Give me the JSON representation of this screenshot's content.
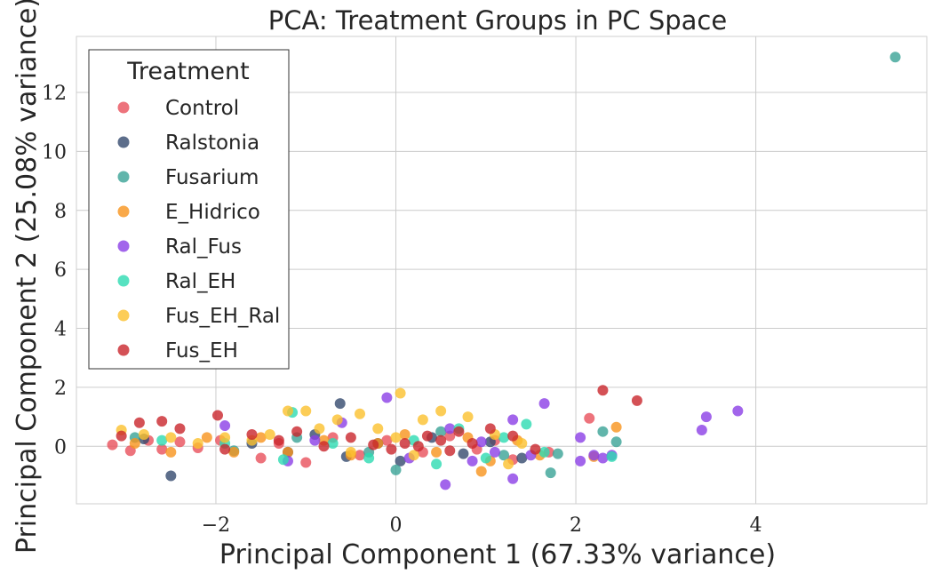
{
  "chart_data": {
    "type": "scatter",
    "title": "PCA: Treatment Groups in PC Space",
    "xlabel": "Principal Component 1 (67.33% variance)",
    "ylabel": "Principal Component 2 (25.08% variance)",
    "xlim": [
      -3.55,
      5.9
    ],
    "ylim": [
      -1.95,
      13.9
    ],
    "xticks": [
      -2,
      0,
      2,
      4
    ],
    "xtick_labels": [
      "−2",
      "0",
      "2",
      "4"
    ],
    "yticks": [
      0,
      2,
      4,
      6,
      8,
      10,
      12
    ],
    "ytick_labels": [
      "0",
      "2",
      "4",
      "6",
      "8",
      "10",
      "12"
    ],
    "grid": true,
    "legend": {
      "title": "Treatment",
      "placement": "upper-left"
    },
    "series": [
      {
        "name": "Control",
        "color": "#e8505b",
        "points": [
          [
            -3.15,
            0.05
          ],
          [
            -2.95,
            -0.15
          ],
          [
            -2.75,
            0.2
          ],
          [
            -2.6,
            -0.1
          ],
          [
            -2.4,
            0.15
          ],
          [
            -2.2,
            -0.05
          ],
          [
            -1.95,
            0.2
          ],
          [
            -1.5,
            -0.4
          ],
          [
            -1.3,
            0.1
          ],
          [
            -1.0,
            -0.55
          ],
          [
            -0.7,
            0.3
          ],
          [
            -0.4,
            -0.3
          ],
          [
            -0.1,
            0.2
          ],
          [
            0.3,
            -0.2
          ],
          [
            0.6,
            0.35
          ],
          [
            0.9,
            -0.1
          ],
          [
            1.3,
            -0.45
          ],
          [
            1.7,
            -0.2
          ],
          [
            2.15,
            0.95
          ],
          [
            1.1,
            0.2
          ]
        ]
      },
      {
        "name": "Ralstonia",
        "color": "#344a6e",
        "points": [
          [
            -2.5,
            -1.0
          ],
          [
            -0.62,
            1.45
          ],
          [
            -2.8,
            0.25
          ],
          [
            -1.6,
            0.1
          ],
          [
            -1.2,
            -0.2
          ],
          [
            -0.9,
            0.4
          ],
          [
            -0.55,
            -0.35
          ],
          [
            -0.2,
            0.1
          ],
          [
            0.05,
            -0.5
          ],
          [
            0.4,
            0.3
          ],
          [
            0.75,
            -0.25
          ],
          [
            1.05,
            0.15
          ],
          [
            1.4,
            -0.4
          ]
        ]
      },
      {
        "name": "Fusarium",
        "color": "#3aa396",
        "points": [
          [
            5.55,
            13.2
          ],
          [
            -2.9,
            0.3
          ],
          [
            -1.8,
            -0.15
          ],
          [
            -1.1,
            0.3
          ],
          [
            -0.3,
            -0.2
          ],
          [
            0.5,
            0.5
          ],
          [
            1.2,
            -0.3
          ],
          [
            1.8,
            -0.25
          ],
          [
            2.3,
            0.5
          ],
          [
            2.45,
            0.15
          ],
          [
            1.72,
            -0.9
          ],
          [
            0.0,
            -0.8
          ]
        ]
      },
      {
        "name": "E_Hidrico",
        "color": "#f7941d",
        "points": [
          [
            -2.9,
            0.1
          ],
          [
            -2.5,
            -0.2
          ],
          [
            -2.1,
            0.3
          ],
          [
            -1.8,
            -0.2
          ],
          [
            -1.5,
            0.3
          ],
          [
            -1.2,
            -0.2
          ],
          [
            -0.8,
            0.2
          ],
          [
            -0.5,
            -0.3
          ],
          [
            -0.2,
            0.1
          ],
          [
            0.1,
            0.4
          ],
          [
            0.45,
            -0.2
          ],
          [
            0.8,
            0.3
          ],
          [
            1.05,
            -0.5
          ],
          [
            1.35,
            0.2
          ],
          [
            1.6,
            -0.3
          ],
          [
            2.45,
            0.65
          ],
          [
            2.2,
            -0.35
          ],
          [
            0.95,
            -0.85
          ]
        ]
      },
      {
        "name": "Ral_Fus",
        "color": "#8b3fe6",
        "points": [
          [
            3.8,
            1.2
          ],
          [
            3.45,
            1.0
          ],
          [
            3.4,
            0.55
          ],
          [
            2.4,
            -0.3
          ],
          [
            2.3,
            -0.4
          ],
          [
            2.2,
            -0.3
          ],
          [
            2.05,
            -0.5
          ],
          [
            2.05,
            0.3
          ],
          [
            1.65,
            1.45
          ],
          [
            1.5,
            -0.3
          ],
          [
            1.3,
            0.9
          ],
          [
            1.1,
            -0.2
          ],
          [
            0.85,
            -0.5
          ],
          [
            0.6,
            0.6
          ],
          [
            0.55,
            -1.3
          ],
          [
            0.15,
            -0.4
          ],
          [
            -0.1,
            1.65
          ],
          [
            -0.6,
            0.8
          ],
          [
            -0.9,
            0.2
          ],
          [
            -1.2,
            -0.5
          ],
          [
            -1.9,
            0.7
          ],
          [
            1.3,
            -1.1
          ],
          [
            0.95,
            0.15
          ]
        ]
      },
      {
        "name": "Ral_EH",
        "color": "#2ddbb2",
        "points": [
          [
            -2.6,
            0.2
          ],
          [
            -1.9,
            0.1
          ],
          [
            -1.25,
            -0.45
          ],
          [
            -1.15,
            1.15
          ],
          [
            -0.7,
            0.1
          ],
          [
            -0.3,
            -0.4
          ],
          [
            0.2,
            0.2
          ],
          [
            0.45,
            -0.6
          ],
          [
            0.7,
            0.6
          ],
          [
            1.0,
            -0.4
          ],
          [
            1.2,
            0.3
          ],
          [
            1.45,
            0.75
          ],
          [
            1.65,
            -0.2
          ],
          [
            2.4,
            -0.35
          ]
        ]
      },
      {
        "name": "Fus_EH_Ral",
        "color": "#fbc02d",
        "points": [
          [
            -3.05,
            0.55
          ],
          [
            -2.8,
            0.4
          ],
          [
            -2.5,
            0.3
          ],
          [
            -2.2,
            0.1
          ],
          [
            -1.9,
            0.3
          ],
          [
            -1.6,
            0.2
          ],
          [
            -1.4,
            0.4
          ],
          [
            -1.2,
            1.2
          ],
          [
            -1.0,
            1.2
          ],
          [
            -0.85,
            0.6
          ],
          [
            -0.65,
            0.9
          ],
          [
            -0.4,
            1.1
          ],
          [
            -0.2,
            0.6
          ],
          [
            0.0,
            0.3
          ],
          [
            0.05,
            1.8
          ],
          [
            0.3,
            0.9
          ],
          [
            0.5,
            1.2
          ],
          [
            0.8,
            1.0
          ],
          [
            1.1,
            0.4
          ],
          [
            1.4,
            0.1
          ],
          [
            -0.5,
            -0.2
          ],
          [
            0.2,
            -0.3
          ],
          [
            1.25,
            -0.6
          ]
        ]
      },
      {
        "name": "Fus_EH",
        "color": "#c9262c",
        "points": [
          [
            2.3,
            1.9
          ],
          [
            2.68,
            1.55
          ],
          [
            -3.05,
            0.35
          ],
          [
            -2.85,
            0.8
          ],
          [
            -2.6,
            0.85
          ],
          [
            -2.4,
            0.6
          ],
          [
            -1.98,
            1.05
          ],
          [
            -1.6,
            0.4
          ],
          [
            -1.3,
            0.2
          ],
          [
            -1.1,
            0.5
          ],
          [
            -0.8,
            0.0
          ],
          [
            -0.5,
            0.3
          ],
          [
            -0.25,
            0.05
          ],
          [
            -0.05,
            -0.1
          ],
          [
            0.1,
            0.1
          ],
          [
            0.25,
            0.0
          ],
          [
            0.35,
            0.35
          ],
          [
            0.5,
            0.2
          ],
          [
            0.6,
            -0.15
          ],
          [
            0.7,
            0.5
          ],
          [
            0.85,
            0.1
          ],
          [
            1.05,
            0.6
          ],
          [
            1.3,
            0.35
          ],
          [
            1.55,
            -0.1
          ],
          [
            -1.9,
            -0.1
          ]
        ]
      }
    ]
  }
}
